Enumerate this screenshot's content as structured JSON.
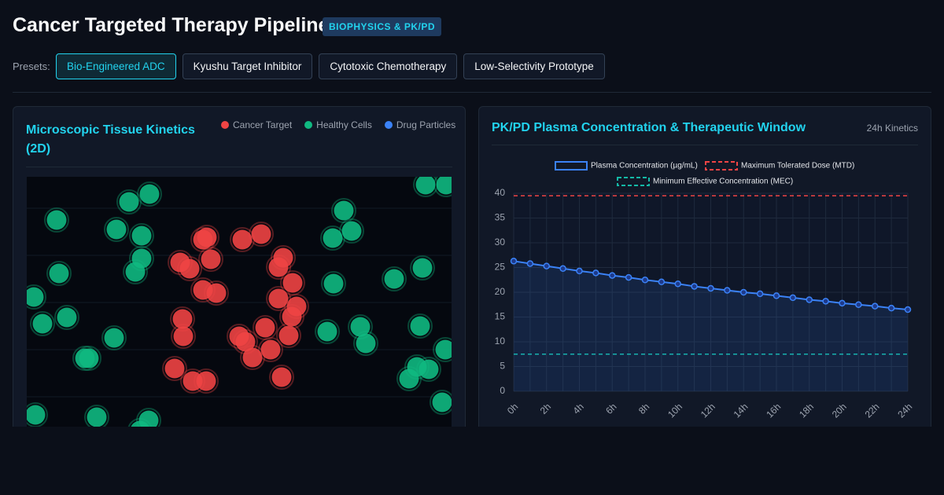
{
  "header": {
    "title": "Cancer Targeted Therapy Pipeline",
    "badge": "BIOPHYSICS & PK/PD"
  },
  "presets": {
    "label": "Presets:",
    "options": [
      "Bio-Engineered ADC",
      "Kyushu Target Inhibitor",
      "Cytotoxic Chemotherapy",
      "Low-Selectivity Prototype"
    ],
    "active": 0
  },
  "tissue_panel": {
    "title": "Microscopic Tissue Kinetics (2D)",
    "legend": [
      {
        "name": "Cancer Target",
        "color": "#ef4444"
      },
      {
        "name": "Healthy Cells",
        "color": "#10b981"
      },
      {
        "name": "Drug Particles",
        "color": "#3b82f6"
      }
    ]
  },
  "chart_data": {
    "type": "line",
    "title": "PK/PD Plasma Concentration & Therapeutic Window",
    "subtitle": "24h Kinetics",
    "categories": [
      "0h",
      null,
      "2h",
      null,
      "4h",
      null,
      "6h",
      null,
      "8h",
      null,
      "10h",
      null,
      "12h",
      null,
      "14h",
      null,
      "16h",
      null,
      "18h",
      null,
      "20h",
      null,
      "22h",
      null,
      "24h"
    ],
    "series": [
      {
        "name": "Plasma Concentration (µg/mL)",
        "color": "#3b82f6",
        "values": [
          26.3,
          25.8,
          25.3,
          24.8,
          24.3,
          23.9,
          23.4,
          23.0,
          22.5,
          22.1,
          21.7,
          21.2,
          20.8,
          20.4,
          20.0,
          19.7,
          19.3,
          18.9,
          18.5,
          18.2,
          17.8,
          17.5,
          17.2,
          16.8,
          16.5
        ]
      }
    ],
    "reference_lines": [
      {
        "name": "Maximum Tolerated Dose (MTD)",
        "color": "#ef4444",
        "value": 39.5
      },
      {
        "name": "Minimum Effective Concentration (MEC)",
        "color": "#14b8a6",
        "value": 7.5
      }
    ],
    "ylim": [
      0,
      40
    ],
    "yticks": [
      0,
      5,
      10,
      15,
      20,
      25,
      30,
      35,
      40
    ],
    "grid": true
  }
}
